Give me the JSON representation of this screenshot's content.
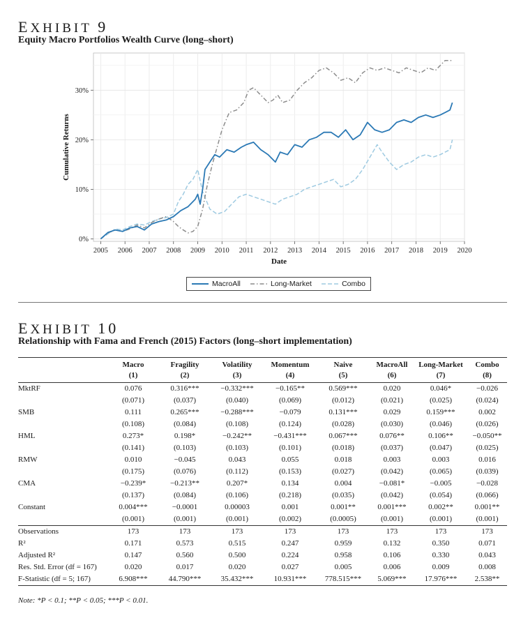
{
  "exhibit9": {
    "label_prefix": "E",
    "label_rest": "XHIBIT",
    "number": "9",
    "title": "Equity Macro Portfolios Wealth Curve (long–short)"
  },
  "chart_data": {
    "type": "line",
    "ylabel": "Cumulative Returns",
    "xlabel": "Date",
    "xlim": [
      2004.7,
      2020.0
    ],
    "ylim": [
      -0.005,
      0.375
    ],
    "xticks": [
      "2005",
      "2006",
      "2007",
      "2008",
      "2009",
      "2010",
      "2011",
      "2012",
      "2013",
      "2014",
      "2015",
      "2016",
      "2017",
      "2018",
      "2019",
      "2020"
    ],
    "yticks": [
      {
        "v": 0.0,
        "label": "0%"
      },
      {
        "v": 0.1,
        "label": "10%"
      },
      {
        "v": 0.2,
        "label": "20%"
      },
      {
        "v": 0.3,
        "label": "30%"
      }
    ],
    "grid": true,
    "legend_position": "bottom-center",
    "series": [
      {
        "name": "MacroAll",
        "color": "#2b79b5",
        "dash": "solid",
        "x": [
          2005.0,
          2005.3,
          2005.6,
          2005.9,
          2006.2,
          2006.5,
          2006.8,
          2007.1,
          2007.4,
          2007.7,
          2008.0,
          2008.3,
          2008.6,
          2008.9,
          2009.0,
          2009.1,
          2009.2,
          2009.3,
          2009.5,
          2009.7,
          2009.9,
          2010.2,
          2010.5,
          2010.8,
          2011.0,
          2011.3,
          2011.6,
          2011.9,
          2012.2,
          2012.4,
          2012.7,
          2013.0,
          2013.3,
          2013.6,
          2013.9,
          2014.2,
          2014.5,
          2014.8,
          2015.1,
          2015.4,
          2015.7,
          2016.0,
          2016.3,
          2016.6,
          2016.9,
          2017.2,
          2017.5,
          2017.8,
          2018.1,
          2018.4,
          2018.7,
          2019.0,
          2019.2,
          2019.4,
          2019.5
        ],
        "y": [
          0.0,
          0.013,
          0.018,
          0.015,
          0.022,
          0.025,
          0.018,
          0.03,
          0.035,
          0.038,
          0.045,
          0.057,
          0.065,
          0.08,
          0.09,
          0.07,
          0.1,
          0.14,
          0.155,
          0.17,
          0.165,
          0.18,
          0.175,
          0.185,
          0.19,
          0.195,
          0.18,
          0.17,
          0.155,
          0.175,
          0.17,
          0.19,
          0.185,
          0.2,
          0.205,
          0.215,
          0.215,
          0.205,
          0.22,
          0.2,
          0.21,
          0.235,
          0.22,
          0.215,
          0.22,
          0.235,
          0.24,
          0.235,
          0.245,
          0.25,
          0.245,
          0.25,
          0.255,
          0.26,
          0.275
        ]
      },
      {
        "name": "Long-Market",
        "color": "#8c8c8c",
        "dash": "6,3,1.5,3",
        "x": [
          2005.0,
          2005.3,
          2005.6,
          2005.9,
          2006.2,
          2006.5,
          2006.8,
          2007.1,
          2007.4,
          2007.7,
          2008.0,
          2008.2,
          2008.4,
          2008.6,
          2008.8,
          2009.0,
          2009.2,
          2009.4,
          2009.6,
          2009.8,
          2010.0,
          2010.3,
          2010.6,
          2010.9,
          2011.1,
          2011.3,
          2011.6,
          2011.9,
          2012.1,
          2012.3,
          2012.5,
          2012.8,
          2013.1,
          2013.4,
          2013.7,
          2014.0,
          2014.3,
          2014.6,
          2014.9,
          2015.2,
          2015.5,
          2015.8,
          2016.1,
          2016.4,
          2016.7,
          2017.0,
          2017.3,
          2017.6,
          2017.9,
          2018.2,
          2018.5,
          2018.8,
          2019.0,
          2019.2,
          2019.5
        ],
        "y": [
          0.0,
          0.012,
          0.018,
          0.015,
          0.02,
          0.028,
          0.022,
          0.033,
          0.04,
          0.045,
          0.035,
          0.025,
          0.018,
          0.012,
          0.015,
          0.025,
          0.06,
          0.11,
          0.15,
          0.185,
          0.22,
          0.255,
          0.26,
          0.275,
          0.3,
          0.305,
          0.29,
          0.275,
          0.28,
          0.29,
          0.275,
          0.28,
          0.3,
          0.315,
          0.325,
          0.34,
          0.345,
          0.335,
          0.32,
          0.325,
          0.315,
          0.335,
          0.345,
          0.34,
          0.345,
          0.34,
          0.335,
          0.345,
          0.34,
          0.335,
          0.345,
          0.34,
          0.35,
          0.36,
          0.36
        ]
      },
      {
        "name": "Combo",
        "color": "#9ecae1",
        "dash": "6,3",
        "x": [
          2005.0,
          2005.3,
          2005.6,
          2005.9,
          2006.2,
          2006.5,
          2006.8,
          2007.1,
          2007.4,
          2007.7,
          2008.0,
          2008.2,
          2008.4,
          2008.6,
          2008.8,
          2009.0,
          2009.2,
          2009.5,
          2009.8,
          2010.1,
          2010.4,
          2010.7,
          2011.0,
          2011.3,
          2011.6,
          2011.9,
          2012.2,
          2012.5,
          2012.8,
          2013.1,
          2013.4,
          2013.7,
          2014.0,
          2014.3,
          2014.6,
          2014.9,
          2015.2,
          2015.5,
          2015.8,
          2016.1,
          2016.4,
          2016.6,
          2016.9,
          2017.2,
          2017.5,
          2017.8,
          2018.1,
          2018.4,
          2018.7,
          2019.0,
          2019.2,
          2019.4,
          2019.5
        ],
        "y": [
          0.0,
          0.01,
          0.02,
          0.018,
          0.025,
          0.03,
          0.028,
          0.035,
          0.04,
          0.043,
          0.05,
          0.075,
          0.09,
          0.11,
          0.12,
          0.14,
          0.095,
          0.06,
          0.05,
          0.055,
          0.07,
          0.085,
          0.09,
          0.085,
          0.08,
          0.075,
          0.07,
          0.08,
          0.085,
          0.09,
          0.1,
          0.105,
          0.11,
          0.115,
          0.12,
          0.105,
          0.11,
          0.12,
          0.14,
          0.165,
          0.19,
          0.175,
          0.155,
          0.14,
          0.15,
          0.155,
          0.165,
          0.17,
          0.165,
          0.17,
          0.175,
          0.18,
          0.2
        ]
      }
    ]
  },
  "exhibit10": {
    "label_prefix": "E",
    "label_rest": "XHIBIT",
    "number": "10",
    "title": "Relationship with Fama and French (2015) Factors (long–short implementation)",
    "columns": [
      "Macro",
      "Fragility",
      "Volatility",
      "Momentum",
      "Naive",
      "MacroAll",
      "Long-Market",
      "Combo"
    ],
    "column_numbers": [
      "(1)",
      "(2)",
      "(3)",
      "(4)",
      "(5)",
      "(6)",
      "(7)",
      "(8)"
    ],
    "rows": [
      {
        "label": "MktRF",
        "coef": [
          "0.076",
          "0.316***",
          "−0.332***",
          "−0.165**",
          "0.569***",
          "0.020",
          "0.046*",
          "−0.026"
        ],
        "se": [
          "(0.071)",
          "(0.037)",
          "(0.040)",
          "(0.069)",
          "(0.012)",
          "(0.021)",
          "(0.025)",
          "(0.024)"
        ]
      },
      {
        "label": "SMB",
        "coef": [
          "0.111",
          "0.265***",
          "−0.288***",
          "−0.079",
          "0.131***",
          "0.029",
          "0.159***",
          "0.002"
        ],
        "se": [
          "(0.108)",
          "(0.084)",
          "(0.108)",
          "(0.124)",
          "(0.028)",
          "(0.030)",
          "(0.046)",
          "(0.026)"
        ]
      },
      {
        "label": "HML",
        "coef": [
          "0.273*",
          "0.198*",
          "−0.242**",
          "−0.431***",
          "0.067***",
          "0.076**",
          "0.106**",
          "−0.050**"
        ],
        "se": [
          "(0.141)",
          "(0.103)",
          "(0.103)",
          "(0.101)",
          "(0.018)",
          "(0.037)",
          "(0.047)",
          "(0.025)"
        ]
      },
      {
        "label": "RMW",
        "coef": [
          "0.010",
          "−0.045",
          "0.043",
          "0.055",
          "0.018",
          "0.003",
          "0.003",
          "0.016"
        ],
        "se": [
          "(0.175)",
          "(0.076)",
          "(0.112)",
          "(0.153)",
          "(0.027)",
          "(0.042)",
          "(0.065)",
          "(0.039)"
        ]
      },
      {
        "label": "CMA",
        "coef": [
          "−0.239*",
          "−0.213**",
          "0.207*",
          "0.134",
          "0.004",
          "−0.081*",
          "−0.005",
          "−0.028"
        ],
        "se": [
          "(0.137)",
          "(0.084)",
          "(0.106)",
          "(0.218)",
          "(0.035)",
          "(0.042)",
          "(0.054)",
          "(0.066)"
        ]
      },
      {
        "label": "Constant",
        "coef": [
          "0.004***",
          "−0.0001",
          "0.00003",
          "0.001",
          "0.001**",
          "0.001***",
          "0.002**",
          "0.001**"
        ],
        "se": [
          "(0.001)",
          "(0.001)",
          "(0.001)",
          "(0.002)",
          "(0.0005)",
          "(0.001)",
          "(0.001)",
          "(0.001)"
        ]
      }
    ],
    "stats": [
      {
        "label": "Observations",
        "values": [
          "173",
          "173",
          "173",
          "173",
          "173",
          "173",
          "173",
          "173"
        ]
      },
      {
        "label": "R²",
        "values": [
          "0.171",
          "0.573",
          "0.515",
          "0.247",
          "0.959",
          "0.132",
          "0.350",
          "0.071"
        ]
      },
      {
        "label": "Adjusted R²",
        "values": [
          "0.147",
          "0.560",
          "0.500",
          "0.224",
          "0.958",
          "0.106",
          "0.330",
          "0.043"
        ]
      },
      {
        "label": "Res. Std. Error (df = 167)",
        "values": [
          "0.020",
          "0.017",
          "0.020",
          "0.027",
          "0.005",
          "0.006",
          "0.009",
          "0.008"
        ]
      },
      {
        "label": "F-Statistic (df = 5; 167)",
        "values": [
          "6.908***",
          "44.790***",
          "35.432***",
          "10.931***",
          "778.515***",
          "5.069***",
          "17.976***",
          "2.538**"
        ]
      }
    ],
    "note": "Note: *P < 0.1; **P < 0.05; ***P < 0.01."
  }
}
